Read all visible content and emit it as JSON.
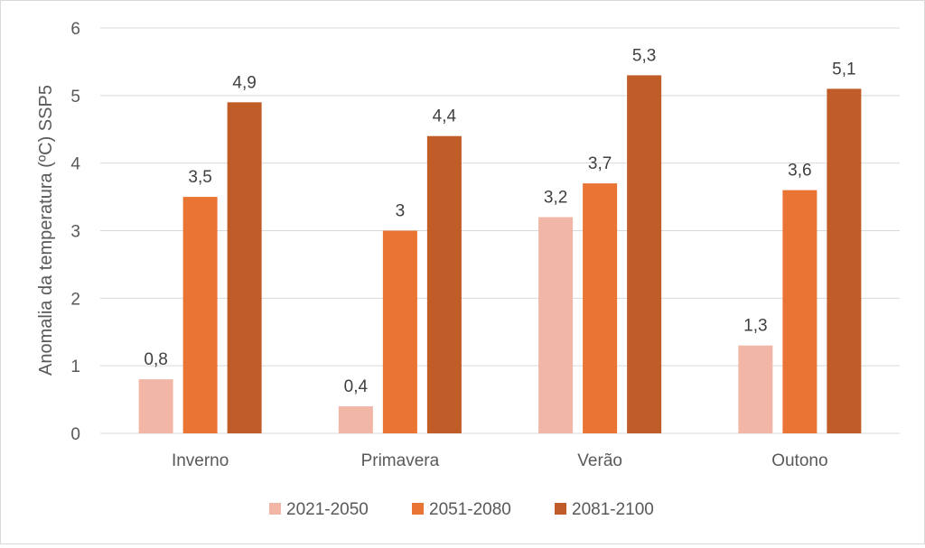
{
  "chart_data": {
    "type": "bar",
    "title": "",
    "xlabel": "",
    "ylabel": "Anomalia da temperatura (ºC) SSP5",
    "ylim": [
      0,
      6
    ],
    "yticks": [
      "0",
      "1",
      "2",
      "3",
      "4",
      "5",
      "6"
    ],
    "grid": true,
    "legend_position": "bottom",
    "categories": [
      "Inverno",
      "Primavera",
      "Verão",
      "Outono"
    ],
    "series": [
      {
        "name": "2021-2050",
        "color": "#f2b6a6",
        "values": [
          0.8,
          0.4,
          3.2,
          1.3
        ],
        "labels": [
          "0,8",
          "0,4",
          "3,2",
          "1,3"
        ]
      },
      {
        "name": "2051-2080",
        "color": "#ea7434",
        "values": [
          3.5,
          3.0,
          3.7,
          3.6
        ],
        "labels": [
          "3,5",
          "3",
          "3,7",
          "3,6"
        ]
      },
      {
        "name": "2081-2100",
        "color": "#c05c28",
        "values": [
          4.9,
          4.4,
          5.3,
          5.1
        ],
        "labels": [
          "4,9",
          "4,4",
          "5,3",
          "5,1"
        ]
      }
    ]
  }
}
